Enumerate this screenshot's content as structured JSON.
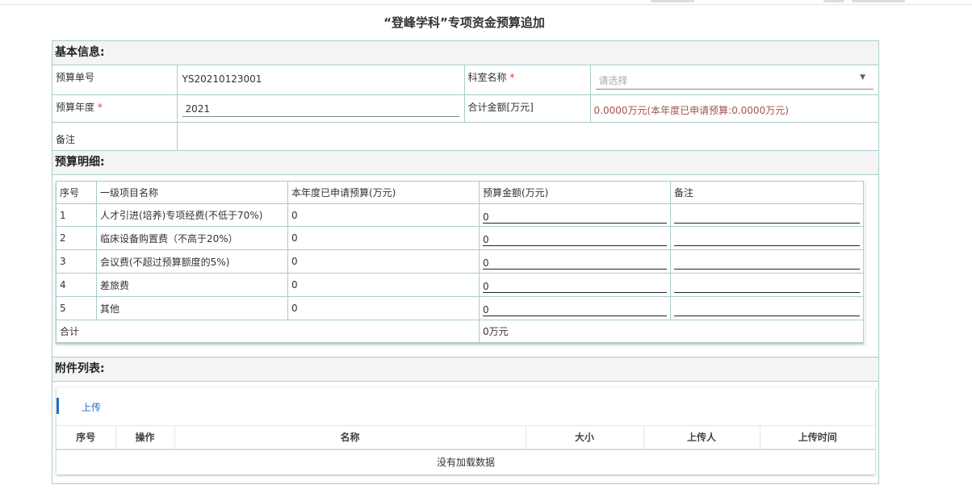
{
  "title": "“登峰学科”专项资金预算追加",
  "basic": {
    "header": "基本信息:",
    "budget_no_label": "预算单号",
    "budget_no": "YS20210123001",
    "dept_label": "科室名称",
    "dept_placeholder": "请选择",
    "year_label": "预算年度",
    "year": "2021",
    "total_label": "合计金额[万元]",
    "total": "0.0000万元(本年度已申请预算:0.0000万元)",
    "remark_label": "备注",
    "remark": "",
    "required": "*"
  },
  "detail": {
    "header": "预算明细:",
    "columns": [
      "序号",
      "一级项目名称",
      "本年度已申请预算(万元)",
      "预算金额(万元)",
      "备注"
    ],
    "rows": [
      {
        "no": "1",
        "name": "人才引进(培养)专项经费(不低于70%)",
        "applied": "0",
        "amount": "0",
        "remark": ""
      },
      {
        "no": "2",
        "name": "临床设备购置费（不高于20%）",
        "applied": "0",
        "amount": "0",
        "remark": ""
      },
      {
        "no": "3",
        "name": "会议费(不超过预算额度的5%)",
        "applied": "0",
        "amount": "0",
        "remark": ""
      },
      {
        "no": "4",
        "name": "差旅费",
        "applied": "0",
        "amount": "0",
        "remark": ""
      },
      {
        "no": "5",
        "name": "其他",
        "applied": "0",
        "amount": "0",
        "remark": ""
      }
    ],
    "total_label": "合计",
    "total": "0万元"
  },
  "attachments": {
    "header": "附件列表:",
    "upload": "上传",
    "columns": [
      "序号",
      "操作",
      "名称",
      "大小",
      "上传人",
      "上传时间"
    ],
    "empty": "没有加载数据"
  },
  "colors": {
    "accent": "#1a73c8",
    "border": "#a9cbcc",
    "total_text": "#a35050",
    "required": "#e33333"
  }
}
